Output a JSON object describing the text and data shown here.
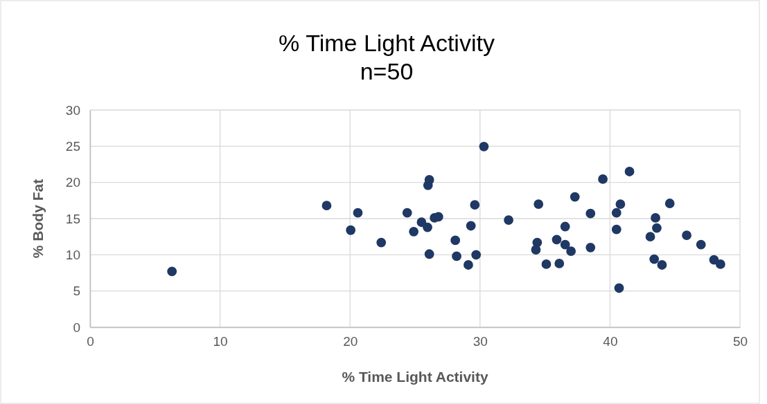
{
  "chart_data": {
    "type": "scatter",
    "title": "% Time Light Activity",
    "subtitle": "n=50",
    "xlabel": "% Time Light Activity",
    "ylabel": "% Body Fat",
    "xlim": [
      0,
      50
    ],
    "xticks": [
      0,
      10,
      20,
      30,
      40,
      50
    ],
    "ylim": [
      0,
      30
    ],
    "yticks": [
      0,
      5,
      10,
      15,
      20,
      25,
      30
    ],
    "grid": true,
    "marker": "circle",
    "series": [
      {
        "color": "#1f3864",
        "x": [
          6.3,
          18.2,
          20.6,
          20.05,
          22.4,
          24.4,
          24.9,
          25.5,
          25.96,
          26.0,
          26.1,
          26.1,
          26.5,
          26.8,
          28.1,
          28.2,
          29.1,
          29.3,
          29.6,
          29.7,
          30.3,
          32.2,
          34.4,
          34.3,
          34.5,
          35.1,
          35.9,
          36.1,
          36.55,
          36.55,
          37.0,
          37.3,
          38.5,
          38.5,
          39.45,
          40.5,
          40.5,
          40.7,
          40.8,
          41.5,
          43.1,
          43.4,
          43.5,
          43.6,
          44.0,
          44.6,
          45.9,
          47.0,
          48.0,
          48.5
        ],
        "values": [
          7.7,
          16.8,
          15.8,
          13.4,
          11.7,
          15.8,
          13.2,
          14.5,
          13.8,
          19.6,
          20.35,
          10.1,
          15.1,
          15.25,
          12.0,
          9.8,
          8.6,
          14.0,
          16.9,
          10.0,
          24.95,
          14.8,
          11.7,
          10.7,
          17.0,
          8.7,
          12.1,
          8.8,
          11.4,
          13.9,
          10.5,
          18.0,
          15.7,
          11.0,
          20.45,
          15.8,
          13.5,
          5.4,
          17.0,
          21.5,
          12.5,
          9.4,
          15.1,
          13.7,
          8.6,
          17.1,
          12.7,
          11.4,
          9.3,
          8.7
        ]
      }
    ]
  }
}
